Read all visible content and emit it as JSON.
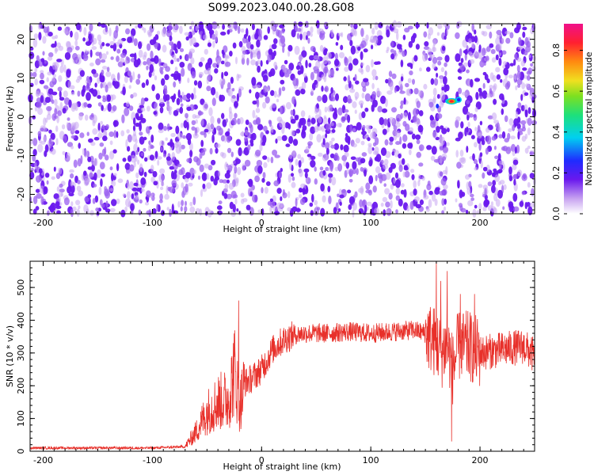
{
  "title": "S099.2023.040.00.28.G08",
  "chart_data": [
    {
      "type": "heatmap",
      "xlabel": "Height of straight line (km)",
      "ylabel": "Frequency (Hz)",
      "xlim": [
        -212,
        250
      ],
      "ylim": [
        -25,
        24
      ],
      "xticks": [
        -200,
        -100,
        0,
        100,
        200
      ],
      "yticks": [
        -20,
        -10,
        0,
        10,
        20
      ],
      "grid": false,
      "colormap": "rainbow (violet to magenta)",
      "colorbar": {
        "label": "Normalized spectral amplitude",
        "range": [
          0,
          0.93
        ],
        "ticks": [
          0.0,
          0.2,
          0.4,
          0.6,
          0.8
        ]
      },
      "gap_column_x": [
        171,
        178
      ],
      "peak": {
        "x": 174,
        "y": 4,
        "amplitude": 0.9
      }
    },
    {
      "type": "line",
      "xlabel": "Height of straight line (km)",
      "ylabel": "SNR (10 * v/v)",
      "xlim": [
        -212,
        250
      ],
      "ylim": [
        0,
        580
      ],
      "xticks": [
        -200,
        -100,
        0,
        100,
        200
      ],
      "yticks": [
        0,
        100,
        200,
        300,
        400,
        500
      ],
      "grid": false,
      "line_color": "#e8302a",
      "series": [
        {
          "x": [
            -212,
            -100,
            -70,
            -60,
            -50,
            -40,
            -30,
            -25,
            -20,
            -15,
            -10,
            0,
            10,
            20,
            30,
            40,
            60,
            80,
            100,
            120,
            140,
            150,
            160,
            165,
            170,
            175,
            180,
            190,
            200,
            220,
            240,
            250
          ],
          "values": [
            10,
            10,
            14,
            60,
            120,
            150,
            160,
            250,
            140,
            210,
            220,
            250,
            310,
            340,
            355,
            360,
            360,
            365,
            360,
            365,
            370,
            360,
            330,
            300,
            330,
            250,
            320,
            320,
            300,
            310,
            320,
            290
          ],
          "peaks": [
            {
              "x": -21,
              "y": 460
            },
            {
              "x": 160,
              "y": 580
            },
            {
              "x": 164,
              "y": 520
            },
            {
              "x": 170,
              "y": 550
            },
            {
              "x": 174,
              "y": 30
            },
            {
              "x": 182,
              "y": 480
            },
            {
              "x": 195,
              "y": 480
            }
          ]
        }
      ]
    }
  ]
}
